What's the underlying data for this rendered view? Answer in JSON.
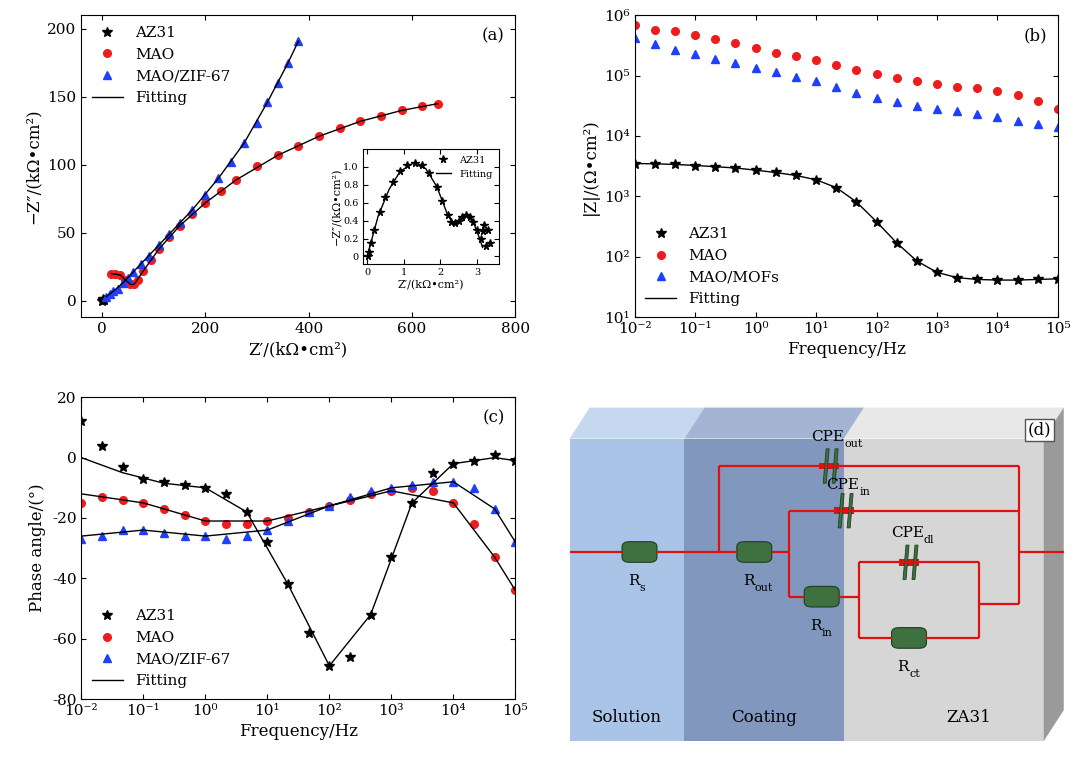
{
  "chart_data": [
    {
      "type": "line",
      "annotation": "(a)",
      "x_label": "Z′/(kΩ•cm²)",
      "y_label": "−Z″/(kΩ•cm²)",
      "xlim": [
        -40,
        800
      ],
      "xticks": [
        0,
        200,
        400,
        600,
        800
      ],
      "ylim": [
        -12,
        210
      ],
      "yticks": [
        0,
        50,
        100,
        150,
        200
      ],
      "legend": "upper left",
      "series": [
        {
          "name": "AZ31",
          "color": "#000000",
          "marker": "star",
          "line_style": "none",
          "x": [
            0,
            1,
            2,
            3
          ],
          "values": [
            0,
            1,
            0.5,
            0.2
          ]
        },
        {
          "name": "MAO",
          "color": "#ee1c1c",
          "marker": "circle",
          "line_style": "none",
          "x": [
            18,
            25,
            35,
            45,
            55,
            62,
            70,
            80,
            95,
            110,
            130,
            150,
            175,
            200,
            230,
            260,
            300,
            340,
            380,
            420,
            460,
            500,
            540,
            580,
            620,
            650
          ],
          "values": [
            20,
            20,
            19,
            15,
            12,
            12,
            15,
            22,
            30,
            38,
            47,
            55,
            64,
            72,
            81,
            89,
            99,
            107,
            114,
            121,
            127,
            132,
            136,
            140,
            143,
            145
          ]
        },
        {
          "name": "MAO/ZIF-67",
          "color": "#1f3fff",
          "marker": "triangle",
          "line_style": "none",
          "x": [
            8,
            15,
            22,
            30,
            40,
            50,
            60,
            75,
            90,
            110,
            130,
            150,
            175,
            200,
            225,
            250,
            275,
            300,
            320,
            340,
            360,
            380
          ],
          "values": [
            3,
            5,
            7,
            9,
            13,
            17,
            21,
            27,
            33,
            41,
            49,
            57,
            67,
            78,
            90,
            102,
            116,
            131,
            146,
            160,
            175,
            191
          ]
        },
        {
          "name": "Fitting",
          "color": "#000000",
          "marker": "none",
          "line_style": "solid",
          "x": [
            18,
            35,
            55,
            62,
            80,
            110,
            150,
            200,
            260,
            340,
            420,
            500,
            580,
            650,
            null,
            8,
            22,
            40,
            60,
            90,
            130,
            175,
            225,
            275,
            320,
            360,
            380
          ],
          "values": [
            20,
            19,
            12,
            12,
            22,
            38,
            55,
            72,
            89,
            107,
            121,
            132,
            140,
            145,
            null,
            3,
            7,
            13,
            21,
            33,
            49,
            67,
            90,
            116,
            146,
            175,
            191
          ]
        }
      ]
    },
    {
      "type": "line",
      "x_label": "Z′/(kΩ•cm²)",
      "y_label": "−Z″/(kΩ•cm²)",
      "xlim": [
        -0.1,
        3.6
      ],
      "xticks": [
        0,
        1,
        2,
        3
      ],
      "ylim": [
        -0.08,
        1.2
      ],
      "yticks": [
        0,
        0.2,
        0.4,
        0.6,
        0.8,
        1.0
      ],
      "legend": "upper right",
      "series": [
        {
          "name": "AZ31",
          "color": "#000000",
          "marker": "star",
          "line_style": "none",
          "x": [
            0.02,
            0.05,
            0.1,
            0.2,
            0.35,
            0.5,
            0.7,
            0.9,
            1.1,
            1.3,
            1.5,
            1.7,
            1.9,
            2.05,
            2.2,
            2.3,
            2.4,
            2.5,
            2.6,
            2.7,
            2.8,
            2.9,
            3.0,
            3.1,
            3.15,
            3.2,
            3.25,
            3.3,
            3.35
          ],
          "values": [
            0.0,
            0.05,
            0.15,
            0.3,
            0.5,
            0.66,
            0.83,
            0.95,
            1.02,
            1.04,
            1.02,
            0.93,
            0.78,
            0.62,
            0.46,
            0.38,
            0.37,
            0.4,
            0.44,
            0.46,
            0.44,
            0.38,
            0.3,
            0.2,
            0.28,
            0.35,
            0.12,
            0.3,
            0.15
          ]
        },
        {
          "name": "Fitting",
          "color": "#000000",
          "marker": "none",
          "line_style": "solid",
          "x": [
            0,
            0.1,
            0.3,
            0.6,
            0.9,
            1.25,
            1.6,
            1.9,
            2.2,
            2.35,
            2.5,
            2.7,
            2.9,
            3.05,
            3.15
          ],
          "values": [
            0,
            0.15,
            0.45,
            0.75,
            0.95,
            1.04,
            0.98,
            0.78,
            0.46,
            0.37,
            0.4,
            0.46,
            0.38,
            0.22,
            0.1
          ]
        }
      ]
    },
    {
      "type": "line",
      "annotation": "(b)",
      "log": true,
      "x_label": "Frequency/Hz",
      "y_label": "|Z|/(Ω•cm²)",
      "xlim": [
        0.01,
        100000
      ],
      "xticks": [
        {
          "value": 0.01,
          "label": "10⁻²"
        },
        {
          "value": 0.1,
          "label": "10⁻¹"
        },
        {
          "value": 1,
          "label": "10⁰"
        },
        {
          "value": 10,
          "label": "10¹"
        },
        {
          "value": 100,
          "label": "10²"
        },
        {
          "value": 1000,
          "label": "10³"
        },
        {
          "value": 10000,
          "label": "10⁴"
        },
        {
          "value": 100000,
          "label": "10⁵"
        }
      ],
      "ylim": [
        10,
        1000000
      ],
      "yticks": [
        {
          "value": 10,
          "label": "10¹"
        },
        {
          "value": 100,
          "label": "10²"
        },
        {
          "value": 1000,
          "label": "10³"
        },
        {
          "value": 10000,
          "label": "10⁴"
        },
        {
          "value": 100000,
          "label": "10⁵"
        },
        {
          "value": 1000000,
          "label": "10⁶"
        }
      ],
      "legend": "lower left",
      "x": [
        0.01,
        0.0215,
        0.0464,
        0.1,
        0.215,
        0.464,
        1,
        2.15,
        4.64,
        10,
        21.5,
        46.4,
        100,
        215,
        464,
        1000,
        2150,
        4640,
        10000,
        21500,
        46400,
        100000
      ],
      "series": [
        {
          "name": "AZ31",
          "color": "#000000",
          "marker": "star",
          "line_style": "none",
          "values": [
            3500,
            3450,
            3400,
            3200,
            3100,
            2950,
            2700,
            2500,
            2250,
            1900,
            1400,
            800,
            380,
            170,
            85,
            55,
            45,
            42,
            41,
            41,
            42,
            43
          ]
        },
        {
          "name": "MAO",
          "color": "#ee1c1c",
          "marker": "circle",
          "line_style": "none",
          "values": [
            700000,
            560000,
            540000,
            480000,
            410000,
            350000,
            290000,
            240000,
            210000,
            180000,
            150000,
            125000,
            105000,
            90000,
            80000,
            72000,
            66000,
            62000,
            56000,
            48000,
            38000,
            28000
          ]
        },
        {
          "name": "MAO/MOFs",
          "color": "#1f3fff",
          "marker": "triangle",
          "line_style": "none",
          "values": [
            420000,
            330000,
            270000,
            230000,
            190000,
            160000,
            135000,
            115000,
            95000,
            80000,
            65000,
            52000,
            42000,
            36000,
            32000,
            28000,
            26000,
            23000,
            21000,
            18000,
            16000,
            14000
          ]
        },
        {
          "name": "Fitting",
          "color": "#000000",
          "marker": "none",
          "line_style": "solid",
          "values": [
            3500,
            3460,
            3380,
            3250,
            3100,
            2950,
            2720,
            2480,
            2220,
            1880,
            1400,
            810,
            380,
            170,
            85,
            55,
            45,
            42,
            41,
            41,
            42,
            43
          ]
        }
      ]
    },
    {
      "type": "line",
      "annotation": "(c)",
      "log": "x",
      "x_label": "Frequency/Hz",
      "y_label": "Phase angle/(°)",
      "xlim": [
        0.01,
        100000
      ],
      "xticks": [
        {
          "value": 0.01,
          "label": "10⁻²"
        },
        {
          "value": 0.1,
          "label": "10⁻¹"
        },
        {
          "value": 1,
          "label": "10⁰"
        },
        {
          "value": 10,
          "label": "10¹"
        },
        {
          "value": 100,
          "label": "10²"
        },
        {
          "value": 1000,
          "label": "10³"
        },
        {
          "value": 10000,
          "label": "10⁴"
        },
        {
          "value": 100000,
          "label": "10⁵"
        }
      ],
      "ylim": [
        -80,
        20
      ],
      "yticks": [
        -80,
        -60,
        -40,
        -20,
        0,
        20
      ],
      "legend": "lower left",
      "x": [
        0.01,
        0.0215,
        0.0464,
        0.1,
        0.215,
        0.464,
        1,
        2.15,
        4.64,
        10,
        21.5,
        46.4,
        100,
        215,
        464,
        1000,
        2150,
        4640,
        10000,
        21500,
        46400,
        100000
      ],
      "series": [
        {
          "name": "AZ31",
          "color": "#000000",
          "marker": "star",
          "line_style": "none",
          "values": [
            12,
            4,
            -3,
            -7,
            -8,
            -9,
            -10,
            -12,
            -18,
            -28,
            -42,
            -58,
            -69,
            -66,
            -52,
            -33,
            -15,
            -5,
            -2,
            -1,
            1,
            -1
          ]
        },
        {
          "name": "MAO",
          "color": "#ee1c1c",
          "marker": "circle",
          "line_style": "none",
          "values": [
            -15,
            -13,
            -14,
            -15,
            -17,
            -19,
            -21,
            -22,
            -22,
            -21,
            -20,
            -18,
            -16,
            -14,
            -12,
            -11,
            -10,
            -11,
            -15,
            -22,
            -33,
            -44
          ]
        },
        {
          "name": "MAO/ZIF-67",
          "color": "#1f3fff",
          "marker": "triangle",
          "line_style": "none",
          "values": [
            -27,
            -26,
            -24,
            -24,
            -25,
            -26,
            -26,
            -27,
            -26,
            -24,
            -21,
            -18,
            -16,
            -13,
            -11,
            -10,
            -9,
            -8,
            -8,
            -10,
            -17,
            -28
          ]
        },
        {
          "name": "Fitting",
          "color": "#000000",
          "marker": "none",
          "line_style": "solid",
          "x": [
            0.01,
            0.0464,
            0.215,
            1,
            4.64,
            21.5,
            100,
            464,
            2150,
            10000,
            46400,
            100000,
            null,
            0.01,
            0.1,
            1,
            10,
            100,
            1000,
            10000,
            46400,
            100000,
            null,
            0.01,
            0.1,
            1,
            10,
            100,
            1000,
            10000,
            46400,
            100000
          ],
          "values": [
            0,
            -5,
            -8.5,
            -10,
            -18,
            -42,
            -69,
            -52,
            -15,
            -2,
            0,
            -1,
            null,
            -12,
            -15,
            -21,
            -21,
            -16,
            -11,
            -15,
            -33,
            -44,
            null,
            -26,
            -24,
            -26,
            -24,
            -16,
            -10,
            -8,
            -17,
            -28
          ]
        }
      ]
    }
  ],
  "diagram": {
    "annotation": "(d)",
    "regions": [
      "Solution",
      "Coating",
      "ZA31"
    ],
    "resistors": [
      {
        "symbol": "R",
        "sub": "s"
      },
      {
        "symbol": "R",
        "sub": "out"
      },
      {
        "symbol": "R",
        "sub": "in"
      },
      {
        "symbol": "R",
        "sub": "ct"
      }
    ],
    "capacitors": [
      {
        "symbol": "CPE",
        "sub": "out"
      },
      {
        "symbol": "CPE",
        "sub": "in"
      },
      {
        "symbol": "CPE",
        "sub": "dl"
      }
    ]
  }
}
